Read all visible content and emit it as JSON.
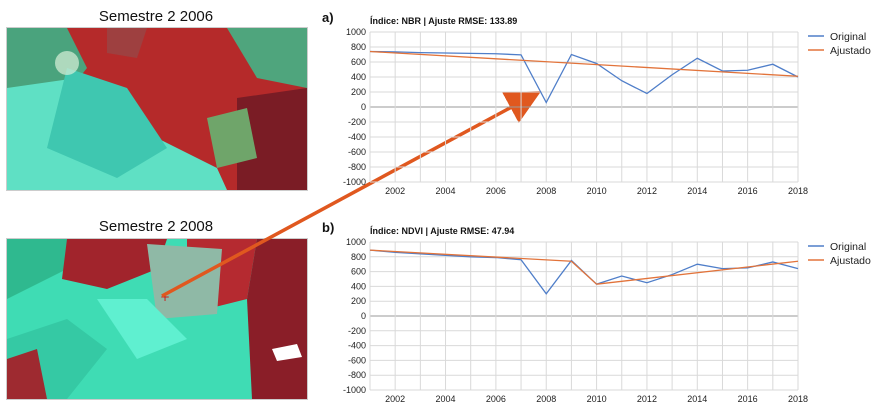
{
  "images": [
    {
      "title": "Semestre 2 2006"
    },
    {
      "title": "Semestre 2 2008"
    }
  ],
  "colors": {
    "original": "#4f7ec9",
    "ajustado": "#e2733a",
    "arrow": "#e0581f",
    "grid": "#d9d9d9"
  },
  "chart_data": [
    {
      "type": "line",
      "panel": "a)",
      "title": "Índice: NBR | Ajuste RMSE: 133.89",
      "x": [
        2001,
        2002,
        2003,
        2004,
        2005,
        2006,
        2007,
        2008,
        2009,
        2010,
        2011,
        2012,
        2013,
        2014,
        2015,
        2016,
        2017,
        2018
      ],
      "xticks": [
        "2002",
        "2004",
        "2006",
        "2008",
        "2010",
        "2012",
        "2014",
        "2016",
        "2018"
      ],
      "yticks": [
        "1000",
        "800",
        "600",
        "400",
        "200",
        "0",
        "-200",
        "-400",
        "-600",
        "-800",
        "-1000"
      ],
      "ylim": [
        -1000,
        1000
      ],
      "series": [
        {
          "name": "Original",
          "values": [
            740,
            735,
            725,
            720,
            715,
            710,
            695,
            60,
            700,
            580,
            350,
            180,
            430,
            650,
            480,
            490,
            570,
            400
          ]
        },
        {
          "name": "Ajustado",
          "x": [
            2001,
            2018
          ],
          "values": [
            740,
            410
          ]
        }
      ]
    },
    {
      "type": "line",
      "panel": "b)",
      "title": "Índice: NDVI | Ajuste RMSE: 47.94",
      "x": [
        2001,
        2002,
        2003,
        2004,
        2005,
        2006,
        2007,
        2008,
        2009,
        2010,
        2011,
        2012,
        2013,
        2014,
        2015,
        2016,
        2017,
        2018
      ],
      "xticks": [
        "2002",
        "2004",
        "2006",
        "2008",
        "2010",
        "2012",
        "2014",
        "2016",
        "2018"
      ],
      "yticks": [
        "1000",
        "800",
        "600",
        "400",
        "200",
        "0",
        "-200",
        "-400",
        "-600",
        "-800",
        "-1000"
      ],
      "ylim": [
        -1000,
        1000
      ],
      "series": [
        {
          "name": "Original",
          "values": [
            890,
            860,
            840,
            820,
            800,
            790,
            760,
            300,
            750,
            430,
            540,
            450,
            560,
            700,
            640,
            650,
            730,
            640
          ]
        },
        {
          "name": "Ajustado",
          "segments": [
            {
              "x": [
                2001,
                2009
              ],
              "values": [
                890,
                740
              ]
            },
            {
              "x": [
                2009,
                2010
              ],
              "values": [
                740,
                430
              ]
            },
            {
              "x": [
                2010,
                2018
              ],
              "values": [
                430,
                740
              ]
            }
          ]
        }
      ]
    }
  ]
}
